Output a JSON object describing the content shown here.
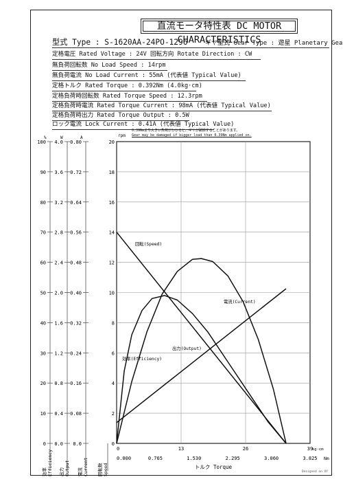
{
  "title": "直流モータ特性表 DC MOTOR CHARACTERISTICS",
  "model": {
    "prefix": "型式 Type : S-1620AA-24PO-1296",
    "gear": "ギヤ型式 Gear Type : 遊星 Planetary Gear"
  },
  "specs": [
    "定格電圧 Rated Voltage : 24V  回転方向 Rotate Direction : CW",
    "無負荷回転数 No Load Speed : 14rpm",
    "無負荷電流 No Load Current : 55mA (代表値 Typical Value)",
    "定格トルク Rated Torque : 0.392Nm (4.0kg·cm)",
    "定格負荷時回転数 Rated Torque Speed : 12.3rpm",
    "定格負荷時電流 Rated Torque Current : 98mA (代表値 Typical Value)",
    "定格負荷時出力 Rated Torque Output : 0.5W",
    "ロック電流 Lock Current : 0.41A (代表値 Typical Value)"
  ],
  "note": {
    "jp": "0.39Nmより大きい負荷がかかると、ギヤが破損することがあります。",
    "en": "Gear may be damaged if bigger load than 0.39Nm applied on."
  },
  "axis_units": {
    "efficiency": "%",
    "output": "W",
    "current": "A",
    "speed": "rpm",
    "torque_kgcm": "kg·cm",
    "torque_nm": "Nm"
  },
  "axis_titles": {
    "efficiency": "効率 Efficiency",
    "output": "出力 Output",
    "current": "電流 Current",
    "speed": "回転数 Speed",
    "torque": "トルク Torque"
  },
  "designed": "Designed on XY",
  "chart_data": {
    "type": "line",
    "y_axes": {
      "efficiency": {
        "ticks": [
          0,
          10,
          20,
          30,
          40,
          50,
          60,
          70,
          80,
          90,
          100
        ],
        "range": [
          0,
          100
        ]
      },
      "output": {
        "ticks": [
          "0.0",
          "0.4",
          "0.8",
          "1.2",
          "1.6",
          "2.0",
          "2.4",
          "2.8",
          "3.2",
          "3.6",
          "4.0"
        ],
        "range": [
          0,
          4.0
        ]
      },
      "current": {
        "ticks": [
          "0.0",
          "0.08",
          "0.16",
          "0.24",
          "0.32",
          "0.40",
          "0.48",
          "0.56",
          "0.64",
          "0.72",
          "0.80"
        ],
        "range": [
          0,
          0.8
        ]
      },
      "speed": {
        "ticks": [
          0,
          2,
          4,
          6,
          8,
          10,
          12,
          14,
          16,
          18,
          20
        ],
        "range": [
          0,
          20
        ]
      }
    },
    "x_axes": {
      "torque_kgcm": {
        "ticks": [
          "0",
          "13",
          "26",
          "39"
        ],
        "range": [
          0,
          39
        ]
      },
      "torque_nm": {
        "ticks": [
          "0.000",
          "0.765",
          "1.530",
          "2.295",
          "3.060",
          "3.825"
        ],
        "range": [
          0,
          3.825
        ]
      }
    },
    "series": [
      {
        "name": "回転(Speed)",
        "axis": "speed",
        "x": [
          0,
          3.35
        ],
        "y": [
          14,
          0
        ]
      },
      {
        "name": "電流(Current)",
        "axis": "current",
        "x": [
          0,
          3.35
        ],
        "y": [
          0.055,
          0.41
        ]
      },
      {
        "name": "出力(Output)",
        "axis": "output",
        "x": [
          0,
          0.3,
          0.6,
          0.9,
          1.2,
          1.5,
          1.675,
          1.9,
          2.2,
          2.5,
          2.8,
          3.1,
          3.35
        ],
        "y": [
          0,
          0.82,
          1.48,
          1.98,
          2.28,
          2.44,
          2.45,
          2.41,
          2.22,
          1.88,
          1.38,
          0.72,
          0
        ]
      },
      {
        "name": "効率(Efficiency)",
        "axis": "efficiency",
        "x": [
          0,
          0.15,
          0.3,
          0.5,
          0.7,
          0.95,
          1.2,
          1.5,
          1.8,
          2.2,
          2.6,
          3.0,
          3.35
        ],
        "y": [
          0,
          24,
          36,
          44,
          48,
          49,
          47.5,
          43,
          37,
          27,
          17,
          7,
          0
        ]
      }
    ]
  }
}
